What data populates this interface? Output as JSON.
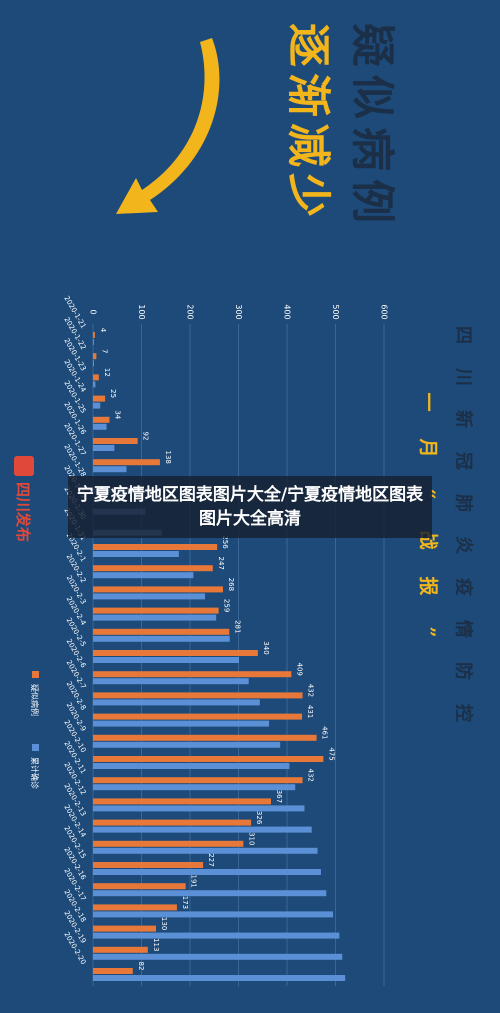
{
  "poster": {
    "main_heading": [
      "疑",
      "似",
      "病",
      "例"
    ],
    "sub_heading": [
      "逐",
      "渐",
      "减",
      "少"
    ],
    "side_title": [
      "四",
      "川",
      "新",
      "冠",
      "肺",
      "炎",
      "疫",
      "情",
      "防",
      "控"
    ],
    "side_subtitle": [
      "一",
      "月",
      "“",
      "战",
      "报",
      "”"
    ],
    "logo_text": "四川发布"
  },
  "caption": {
    "text": "宁夏疫情地区图表图片大全/宁夏疫情地区图表图片大全高清"
  },
  "colors": {
    "background": "#1d4a78",
    "suspected": "#e8783a",
    "confirmed": "#5b8fd6",
    "arrow": "#f2b51c",
    "heading_dark": "#1b3048",
    "heading_gold": "#f2b51c"
  },
  "chart_data": {
    "type": "bar",
    "orientation": "horizontal, rotated 90°",
    "categories": [
      "2020-1-21",
      "2020-1-22",
      "2020-1-23",
      "2020-1-24",
      "2020-1-25",
      "2020-1-26",
      "2020-1-27",
      "2020-1-28",
      "2020-1-29",
      "2020-1-30",
      "2020-1-31",
      "2020-2-1",
      "2020-2-2",
      "2020-2-3",
      "2020-2-4",
      "2020-2-5",
      "2020-2-6",
      "2020-2-7",
      "2020-2-8",
      "2020-2-9",
      "2020-2-10",
      "2020-2-11",
      "2020-2-12",
      "2020-2-13",
      "2020-2-14",
      "2020-2-15",
      "2020-2-16",
      "2020-2-17",
      "2020-2-18",
      "2020-2-19",
      "2020-2-20"
    ],
    "series": [
      {
        "name": "疑似病例",
        "values": [
          4,
          7,
          12,
          25,
          34,
          92,
          138,
          0,
          0,
          0,
          256,
          247,
          268,
          259,
          281,
          340,
          409,
          432,
          431,
          461,
          475,
          432,
          367,
          326,
          310,
          227,
          191,
          173,
          130,
          113,
          82
        ],
        "labels": [
          "4",
          "7",
          "12",
          "25",
          "34",
          "92",
          "138",
          "",
          "",
          "",
          "256",
          "247",
          "268",
          "259",
          "281",
          "340",
          "409",
          "432",
          "431",
          "461",
          "475",
          "432",
          "367",
          "326",
          "310",
          "227",
          "191",
          "173",
          "130",
          "113",
          "82"
        ]
      },
      {
        "name": "累计确诊",
        "values": [
          1,
          2,
          5,
          15,
          28,
          44,
          69,
          90,
          108,
          142,
          177,
          207,
          231,
          254,
          282,
          301,
          321,
          344,
          363,
          386,
          405,
          417,
          436,
          451,
          463,
          470,
          481,
          495,
          508,
          514,
          520
        ]
      }
    ],
    "xlim": [
      0,
      600
    ],
    "ticks": [
      "0",
      "100",
      "200",
      "300",
      "400",
      "500",
      "600"
    ],
    "tick_values": [
      0,
      100,
      200,
      300,
      400,
      500,
      600
    ],
    "legend": "left-bottom",
    "grid": true
  }
}
